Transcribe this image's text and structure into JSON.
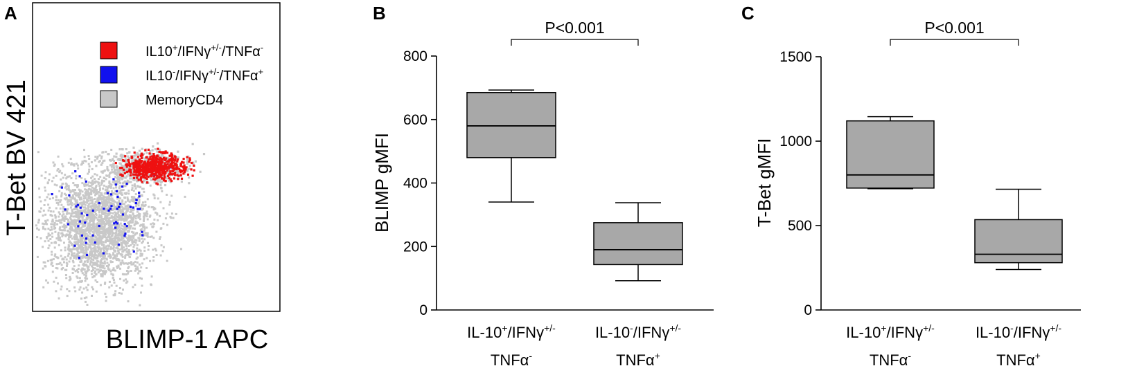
{
  "panels": {
    "a": {
      "letter": "A"
    },
    "b": {
      "letter": "B"
    },
    "c": {
      "letter": "C"
    }
  },
  "colors": {
    "il10_pos": "#ee1111",
    "il10_neg": "#1111ee",
    "memory": "#c8c8c8",
    "box_fill": "#a8a8a8"
  },
  "chart_data": [
    {
      "type": "scatter",
      "panel": "A",
      "xlabel": "BLIMP-1 APC",
      "ylabel": "T-Bet BV 421",
      "legend": [
        {
          "key": "il10_pos",
          "base": "IL10",
          "sup1": "+",
          "mid1": "/IFNγ",
          "sup2": "+/-",
          "mid2": "/TNFα",
          "sup3": "-",
          "color": "#ee1111"
        },
        {
          "key": "il10_neg",
          "base": "IL10",
          "sup1": "-",
          "mid1": "/IFNγ",
          "sup2": "+/-",
          "mid2": "/TNFα",
          "sup3": "+",
          "color": "#1111ee"
        },
        {
          "key": "memory",
          "text": "MemoryCD4",
          "color": "#c8c8c8"
        }
      ],
      "legend_position": "top-right"
    },
    {
      "type": "box",
      "panel": "B",
      "ylabel": "BLIMP gMFI",
      "ylim": [
        0,
        800
      ],
      "yticks": [
        0,
        200,
        400,
        600,
        800
      ],
      "categories": [
        {
          "line1": "IL-10",
          "s1": "+",
          "m1": "/IFNγ",
          "s2": "+/-",
          "line2": "TNFα",
          "s3": "-"
        },
        {
          "line1": "IL-10",
          "s1": "-",
          "m1": "/IFNγ",
          "s2": "+/-",
          "line2": "TNFα",
          "s3": "+"
        }
      ],
      "boxes": [
        {
          "min": 340,
          "q1": 480,
          "median": 580,
          "q3": 685,
          "max": 693
        },
        {
          "min": 92,
          "q1": 143,
          "median": 190,
          "q3": 275,
          "max": 338
        }
      ],
      "significance": "P<0.001"
    },
    {
      "type": "box",
      "panel": "C",
      "ylabel": "T-Bet gMFI",
      "ylim": [
        0,
        1500
      ],
      "yticks": [
        0,
        500,
        1000,
        1500
      ],
      "categories": [
        {
          "line1": "IL-10",
          "s1": "+",
          "m1": "/IFNγ",
          "s2": "+/-",
          "line2": "TNFα",
          "s3": "-"
        },
        {
          "line1": "IL-10",
          "s1": "-",
          "m1": "/IFNγ",
          "s2": "+/-",
          "line2": "TNFα",
          "s3": "+"
        }
      ],
      "boxes": [
        {
          "min": 718,
          "q1": 722,
          "median": 800,
          "q3": 1120,
          "max": 1145
        },
        {
          "min": 240,
          "q1": 280,
          "median": 330,
          "q3": 535,
          "max": 715
        }
      ],
      "significance": "P<0.001"
    }
  ]
}
